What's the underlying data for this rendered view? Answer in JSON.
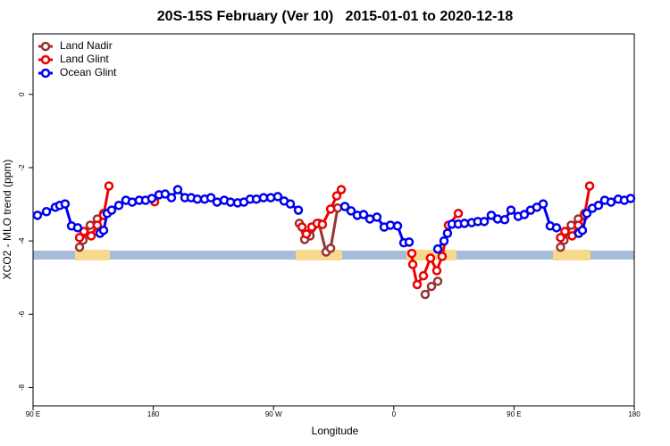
{
  "chart_data": {
    "type": "line",
    "title": "20S-15S February (Ver 10)   2015-01-01 to 2020-12-18",
    "x_label": "Longitude",
    "y_label": "XCO2 - MLO trend (ppm)",
    "xlim": [
      90,
      540
    ],
    "ylim": [
      -8.5,
      1.65
    ],
    "xticks": [
      {
        "value": 90,
        "label": "90 E"
      },
      {
        "value": 180,
        "label": "180"
      },
      {
        "value": 270,
        "label": "90 W"
      },
      {
        "value": 360,
        "label": "0"
      },
      {
        "value": 450,
        "label": "90 E"
      },
      {
        "value": 540,
        "label": "180"
      }
    ],
    "yticks": [
      0,
      -2,
      -4,
      -6,
      -8
    ],
    "legend": "top-left",
    "series": [
      {
        "name": "Land Nadir",
        "color": "#993333",
        "x": [
          124.8,
          127.4,
          132.8,
          138.1,
          142.8,
          null,
          289.3,
          293.3,
          297.3,
          304,
          309.3,
          312.7,
          318,
          null,
          383.5,
          388.2,
          392.9,
          null,
          484.8,
          487.4,
          492.8,
          498.1,
          502.8
        ],
        "values": [
          -4.17,
          -3.98,
          -3.57,
          -3.4,
          -3.25,
          null,
          -3.52,
          -3.96,
          -3.86,
          -3.52,
          -4.3,
          -4.2,
          -3.1,
          null,
          -5.46,
          -5.24,
          -5.1,
          null,
          -4.17,
          -3.98,
          -3.57,
          -3.4,
          -3.25
        ]
      },
      {
        "name": "Land Glint",
        "color": "#ee0000",
        "x": [
          124.8,
          128.1,
          133.5,
          138.1,
          142.8,
          146.8,
          null,
          181,
          null,
          291.3,
          294.6,
          298.6,
          302.6,
          306.6,
          312.7,
          317.3,
          320.7,
          null,
          373.5,
          374.2,
          377.5,
          382.2,
          387.5,
          392.2,
          396.2,
          400.9,
          408.3,
          null,
          484.8,
          488.1,
          493.5,
          498.1,
          502.8,
          506.6
        ],
        "values": [
          -3.91,
          -3.74,
          -3.86,
          -3.57,
          -3.3,
          -2.5,
          null,
          -2.93,
          null,
          -3.62,
          -3.81,
          -3.62,
          -3.52,
          -3.55,
          -3.13,
          -2.77,
          -2.6,
          null,
          -4.34,
          -4.64,
          -5.19,
          -4.95,
          -4.47,
          -4.81,
          -4.42,
          -3.57,
          -3.25,
          null,
          -3.91,
          -3.74,
          -3.86,
          -3.57,
          -3.3,
          -2.5
        ]
      },
      {
        "name": "Ocean Glint",
        "color": "#0000ee",
        "x": [
          93.3,
          100,
          106.7,
          110,
          114,
          118.8,
          123.4,
          null,
          140.1,
          142.8,
          145.5,
          148.8,
          154.2,
          159.5,
          164.2,
          169.5,
          174.2,
          178.9,
          184.3,
          188.9,
          193.6,
          198.3,
          203.7,
          208.3,
          213,
          218.4,
          223.1,
          227.7,
          233.1,
          237.8,
          243.1,
          247.8,
          252.5,
          257.2,
          262.5,
          267.9,
          273.2,
          277.9,
          282.6,
          288.6,
          null,
          323.4,
          328,
          332.7,
          337.4,
          342.1,
          347.4,
          352.8,
          357.5,
          362.8,
          367.5,
          371.5,
          null,
          392.9,
          397.6,
          400.2,
          403.6,
          408.3,
          412.9,
          418.3,
          422.9,
          427.7,
          433,
          437.7,
          443,
          447.7,
          453.1,
          457.7,
          462.4,
          467.1,
          471.8,
          477.1,
          481.8,
          null,
          498.5,
          501.2,
          504.5,
          508.6,
          513.2,
          517.9,
          522.6,
          528,
          532.6,
          537.3
        ],
        "values": [
          -3.3,
          -3.2,
          -3.08,
          -3.03,
          -2.99,
          -3.59,
          -3.64,
          null,
          -3.79,
          -3.71,
          -3.25,
          -3.16,
          -3.03,
          -2.89,
          -2.94,
          -2.89,
          -2.89,
          -2.84,
          -2.74,
          -2.72,
          -2.82,
          -2.6,
          -2.82,
          -2.82,
          -2.86,
          -2.86,
          -2.82,
          -2.94,
          -2.89,
          -2.94,
          -2.96,
          -2.94,
          -2.86,
          -2.86,
          -2.82,
          -2.82,
          -2.79,
          -2.91,
          -2.99,
          -3.16,
          null,
          -3.06,
          -3.18,
          -3.3,
          -3.28,
          -3.4,
          -3.35,
          -3.62,
          -3.57,
          -3.59,
          -4.05,
          -4.03,
          null,
          -4.22,
          -4,
          -3.79,
          -3.54,
          -3.54,
          -3.52,
          -3.5,
          -3.47,
          -3.47,
          -3.3,
          -3.4,
          -3.42,
          -3.16,
          -3.33,
          -3.28,
          -3.16,
          -3.08,
          -2.99,
          -3.59,
          -3.64,
          null,
          -3.79,
          -3.71,
          -3.25,
          -3.11,
          -3.03,
          -2.89,
          -2.94,
          -2.86,
          -2.89,
          -2.84
        ]
      }
    ]
  }
}
